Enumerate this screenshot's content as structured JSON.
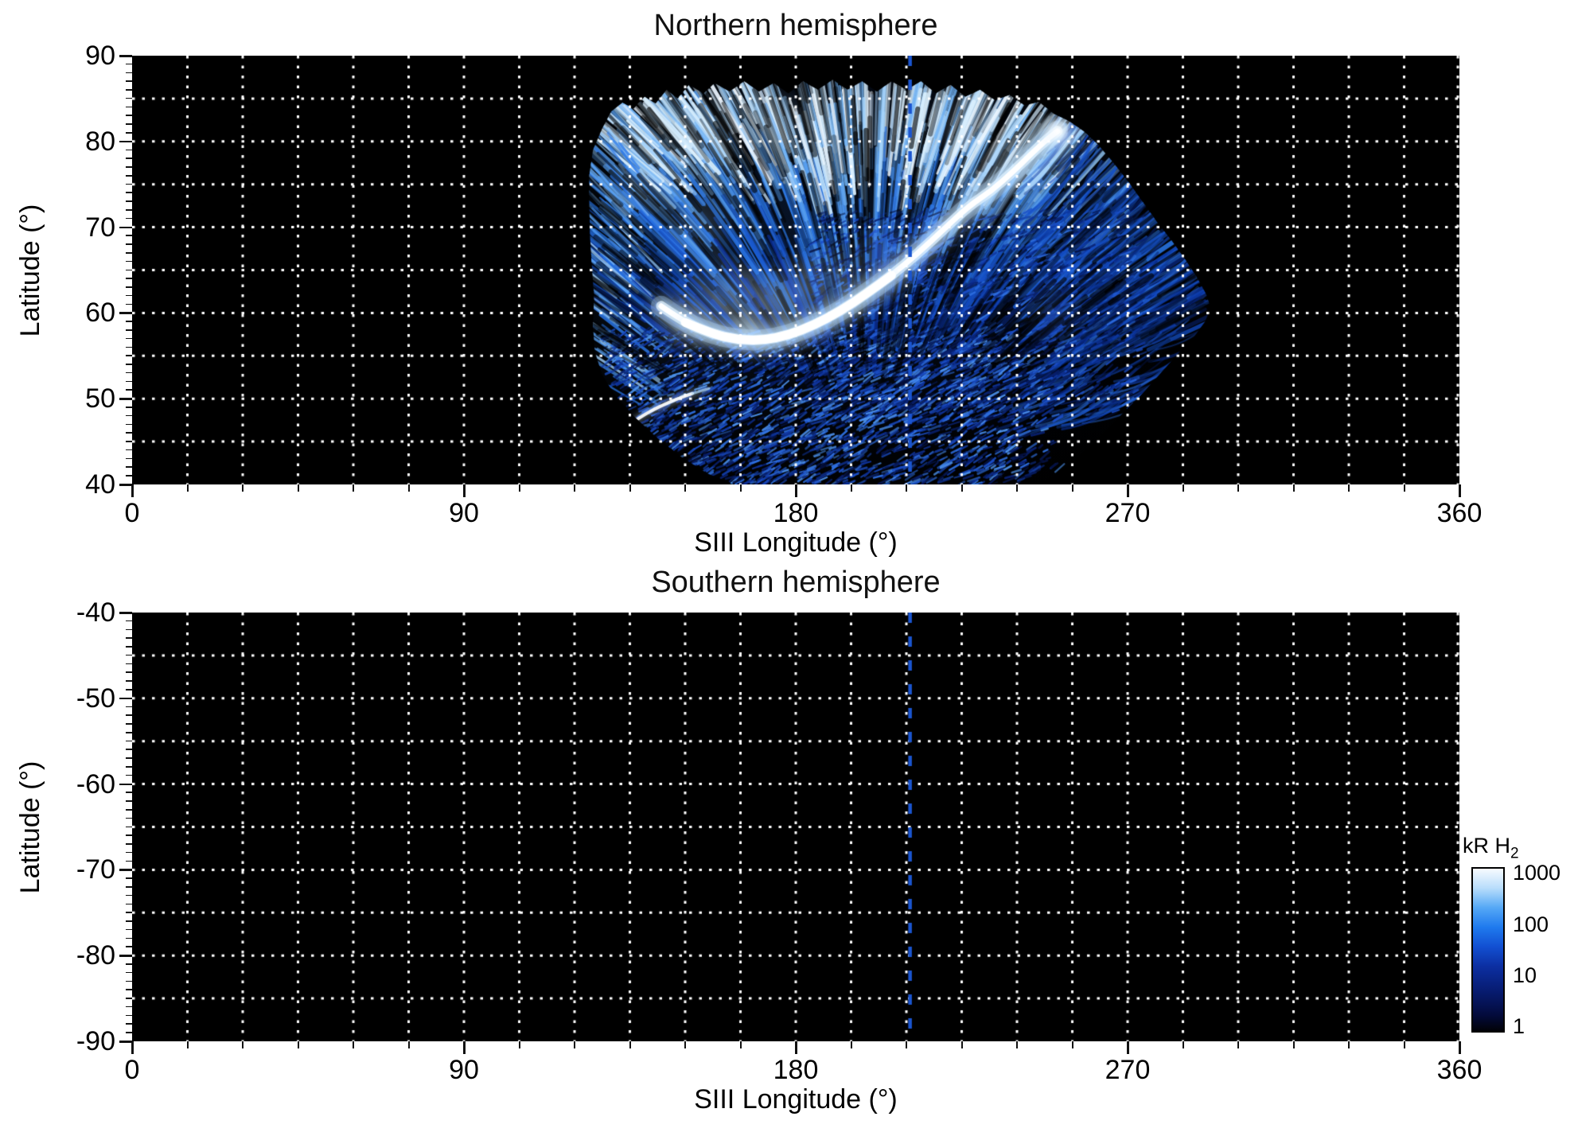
{
  "figure": {
    "background": "#ffffff"
  },
  "chart_data": {
    "type": "heatmap",
    "description": "Auroral H2 emission brightness maps in SIII longitude vs latitude for both hemispheres, log color scale in kR",
    "grid": {
      "color": "#ffffff",
      "style": "dotted",
      "dash": [
        3.5,
        9
      ],
      "line_width": 3,
      "lon_step_deg": 15,
      "lat_step_deg": 5
    },
    "reference_line": {
      "lon": 211,
      "color": "#1a55d0",
      "style": "dashed",
      "dash": [
        13,
        17
      ],
      "width": 4.5
    },
    "panels": [
      {
        "id": "north",
        "title": "Northern hemisphere",
        "xlabel": "SIII Longitude (°)",
        "ylabel": "Latitude (°)",
        "xlim": [
          0,
          360
        ],
        "ylim": [
          40,
          90
        ],
        "xticks": [
          0,
          90,
          180,
          270,
          360
        ],
        "yticks": [
          90,
          80,
          70,
          60,
          50,
          40
        ],
        "x_minor_step": 15,
        "y_minor_step": 1,
        "background": "#000000",
        "has_aurora": true
      },
      {
        "id": "south",
        "title": "Southern hemisphere",
        "xlabel": "SIII Longitude (°)",
        "ylabel": "Latitude (°)",
        "xlim": [
          0,
          360
        ],
        "ylim": [
          -90,
          -40
        ],
        "xticks": [
          0,
          90,
          180,
          270,
          360
        ],
        "yticks": [
          -40,
          -50,
          -60,
          -70,
          -80,
          -90
        ],
        "x_minor_step": 15,
        "y_minor_step": 1,
        "background": "#000000",
        "has_aurora": false
      }
    ],
    "colorbar": {
      "title": "kR H",
      "title_subscript": "2",
      "scale": "log",
      "tick_values": [
        1000,
        100,
        10,
        1
      ],
      "value_range": [
        0.75,
        1300
      ],
      "gradient_bottom_to_top": [
        "#010207",
        "#030b3d",
        "#071c72",
        "#0c2fa2",
        "#1250d2",
        "#1f7aee",
        "#55a8f6",
        "#b8ddfb",
        "#f7fbff"
      ],
      "gradient_stops_pct": [
        0,
        10,
        25,
        40,
        52,
        64,
        76,
        88,
        100
      ]
    },
    "aurora": {
      "seed": 11,
      "lon_range": [
        124,
        293
      ],
      "lat_range": [
        40,
        87
      ],
      "fan_origin": {
        "lon": 200,
        "lat": 26
      },
      "outline": [
        [
          124,
          76
        ],
        [
          125,
          79
        ],
        [
          127.5,
          81.5
        ],
        [
          130,
          83.5
        ],
        [
          133,
          84.5
        ],
        [
          136,
          83.8
        ],
        [
          139,
          85.2
        ],
        [
          142,
          84.4
        ],
        [
          145,
          86
        ],
        [
          148,
          85
        ],
        [
          151,
          86.6
        ],
        [
          155,
          85.6
        ],
        [
          158,
          86.8
        ],
        [
          162,
          85.8
        ],
        [
          166,
          87
        ],
        [
          170,
          85.8
        ],
        [
          174,
          86.8
        ],
        [
          178,
          85.6
        ],
        [
          182,
          87
        ],
        [
          186,
          86
        ],
        [
          190,
          87.2
        ],
        [
          194,
          86
        ],
        [
          198,
          87
        ],
        [
          202,
          85.8
        ],
        [
          206,
          87
        ],
        [
          210,
          86
        ],
        [
          214,
          87
        ],
        [
          218,
          85.6
        ],
        [
          222,
          86.6
        ],
        [
          226,
          85.2
        ],
        [
          230,
          86
        ],
        [
          234,
          84.8
        ],
        [
          238,
          85.4
        ],
        [
          242,
          84.2
        ],
        [
          246,
          84.6
        ],
        [
          250,
          83.2
        ],
        [
          254,
          82.4
        ],
        [
          258,
          81.2
        ],
        [
          262,
          79.6
        ],
        [
          266,
          77.6
        ],
        [
          270,
          75.4
        ],
        [
          274,
          73
        ],
        [
          278,
          70.6
        ],
        [
          282,
          68.4
        ],
        [
          286,
          66
        ],
        [
          289,
          64
        ],
        [
          291.5,
          62
        ],
        [
          292.5,
          60.5
        ],
        [
          291,
          59
        ],
        [
          288,
          57.2
        ],
        [
          284,
          55.4
        ],
        [
          279,
          53
        ],
        [
          274,
          50.6
        ],
        [
          268,
          48
        ],
        [
          262,
          45.4
        ],
        [
          256,
          43
        ],
        [
          250,
          41
        ],
        [
          246,
          40.2
        ],
        [
          244,
          40
        ],
        [
          163,
          40
        ],
        [
          156,
          41.3
        ],
        [
          149,
          43.2
        ],
        [
          142,
          45.6
        ],
        [
          136,
          48
        ],
        [
          131,
          50.4
        ],
        [
          127.5,
          52.8
        ],
        [
          125.5,
          55.5
        ],
        [
          125,
          58.5
        ],
        [
          125.3,
          62
        ],
        [
          124.7,
          65.5
        ],
        [
          124.2,
          69
        ],
        [
          124,
          72.5
        ]
      ],
      "haze": [
        {
          "lon": 180,
          "lat": 72,
          "r": 480,
          "rgba": [
            40,
            110,
            230,
            0.16
          ]
        },
        {
          "lon": 235,
          "lat": 70,
          "r": 380,
          "rgba": [
            30,
            90,
            210,
            0.13
          ]
        },
        {
          "lon": 150,
          "lat": 62,
          "r": 220,
          "rgba": [
            90,
            160,
            245,
            0.12
          ]
        }
      ],
      "bright_clouds": [
        {
          "lon": 150,
          "lat": 58.5,
          "r": 42,
          "a": 0.28
        },
        {
          "lon": 159,
          "lat": 62,
          "r": 58,
          "a": 0.34
        },
        {
          "lon": 170,
          "lat": 60.5,
          "r": 62,
          "a": 0.4
        },
        {
          "lon": 181,
          "lat": 62.5,
          "r": 58,
          "a": 0.34
        },
        {
          "lon": 192,
          "lat": 64.5,
          "r": 50,
          "a": 0.26
        },
        {
          "lon": 168,
          "lat": 58,
          "r": 30,
          "a": 0.45
        },
        {
          "lon": 203,
          "lat": 67.5,
          "r": 42,
          "a": 0.2
        },
        {
          "lon": 240,
          "lat": 77.5,
          "r": 46,
          "a": 0.42
        },
        {
          "lon": 230,
          "lat": 73.5,
          "r": 38,
          "a": 0.26
        },
        {
          "lon": 248,
          "lat": 80,
          "r": 30,
          "a": 0.5
        },
        {
          "lon": 152,
          "lat": 70,
          "r": 55,
          "a": 0.18
        },
        {
          "lon": 140,
          "lat": 75,
          "r": 50,
          "a": 0.22
        },
        {
          "lon": 155,
          "lat": 80,
          "r": 55,
          "a": 0.26
        },
        {
          "lon": 175,
          "lat": 82,
          "r": 50,
          "a": 0.22
        },
        {
          "lon": 225,
          "lat": 82,
          "r": 50,
          "a": 0.24
        },
        {
          "lon": 250,
          "lat": 60,
          "r": 45,
          "a": 0.1
        }
      ],
      "main_oval": [
        [
          143.5,
          60.8
        ],
        [
          150,
          58.9
        ],
        [
          157,
          57.6
        ],
        [
          164,
          56.9
        ],
        [
          171,
          56.8
        ],
        [
          178,
          57.4
        ],
        [
          185,
          58.6
        ],
        [
          192,
          60.2
        ],
        [
          199,
          62.2
        ],
        [
          206,
          64.4
        ],
        [
          213,
          66.9
        ],
        [
          220,
          69.7
        ],
        [
          227,
          72.5
        ],
        [
          233,
          74.2
        ],
        [
          239,
          76.5
        ],
        [
          244,
          78.6
        ],
        [
          248,
          80.2
        ],
        [
          251,
          81.2
        ]
      ],
      "main_oval_bright_span": [
        1,
        9
      ],
      "secondary_arc": [
        [
          133.5,
          46.6
        ],
        [
          138,
          47.9
        ],
        [
          143,
          49.1
        ],
        [
          148,
          50
        ],
        [
          152,
          50.6
        ]
      ],
      "secondary_arc_ext": [
        [
          152,
          50.6
        ],
        [
          156.5,
          51.2
        ]
      ],
      "streak_passes": [
        {
          "name": "upper-fan",
          "n": 750,
          "lon": [
            124,
            292
          ],
          "lat": [
            58,
            88
          ],
          "len": [
            50,
            160
          ],
          "width": [
            2,
            6
          ],
          "alpha": [
            0.3,
            0.8
          ],
          "angle_mode": "radial",
          "flatten": 0.55,
          "bias_lat": true,
          "palette": [
            "#0a2f9a",
            "#1553cc",
            "#2a77e8",
            "#57a0f2",
            "#93c9f8",
            "#d8eefd"
          ]
        },
        {
          "name": "top-bright",
          "n": 230,
          "lon": [
            130,
            270
          ],
          "lat": [
            77,
            87
          ],
          "len": [
            60,
            150
          ],
          "width": [
            2.5,
            5.5
          ],
          "alpha": [
            0.45,
            0.95
          ],
          "angle_mode": "radial",
          "flatten": 0.45,
          "bias_lat": false,
          "palette": [
            "#6fb2f5",
            "#a5d2fa",
            "#d8eefd",
            "#eef7ff"
          ]
        },
        {
          "name": "left-rim",
          "n": 90,
          "lon": [
            124,
            138
          ],
          "lat": [
            50,
            80
          ],
          "len": [
            40,
            95
          ],
          "width": [
            2,
            4
          ],
          "alpha": [
            0.4,
            0.85
          ],
          "angle_mode": "radial",
          "flatten": 0.7,
          "bias_lat": false,
          "palette": [
            "#2a77e8",
            "#57a0f2",
            "#9cccf8"
          ]
        },
        {
          "name": "right-lobe",
          "n": 290,
          "lon": [
            246,
            293
          ],
          "lat": [
            48,
            82
          ],
          "len": [
            60,
            150
          ],
          "width": [
            2,
            4
          ],
          "alpha": [
            0.3,
            0.65
          ],
          "angle_mode": "radial",
          "flatten": 0.55,
          "curve": 0.15,
          "bias_lat": false,
          "fade_lon": [
            278,
            297
          ],
          "palette": [
            "#051f70",
            "#0a35a0",
            "#1550c8",
            "#2a6fe0"
          ]
        },
        {
          "name": "mid-speckle",
          "n": 1600,
          "lon": [
            185,
            275
          ],
          "lat": [
            48,
            72
          ],
          "len": [
            5,
            18
          ],
          "width": [
            2,
            3
          ],
          "alpha": [
            0.45,
            0.9
          ],
          "angle_mode": "fixed",
          "angle": -0.5,
          "jitter": 0.25,
          "fade_lon": [
            252,
            292
          ],
          "bias_lat": false,
          "palette": [
            "#04103f",
            "#081f6e",
            "#0e339b",
            "#1a4ec8",
            "#2e6fe0"
          ]
        },
        {
          "name": "lower-speckle",
          "n": 2700,
          "lon": [
            128,
            252
          ],
          "lat": [
            40,
            58
          ],
          "len": [
            5,
            16
          ],
          "width": [
            2,
            3
          ],
          "alpha": [
            0.5,
            0.95
          ],
          "angle_mode": "fixed",
          "angle": -0.5,
          "jitter": 0.25,
          "fade_lon": [
            228,
            264
          ],
          "bias_lat": false,
          "palette": [
            "#04103f",
            "#081f6e",
            "#0e339b",
            "#1a4ec8",
            "#2e6fe0",
            "#4c92ee"
          ]
        },
        {
          "name": "dark-notches",
          "n": 330,
          "lon": [
            124,
            290
          ],
          "lat": [
            55,
            87
          ],
          "len": [
            40,
            110
          ],
          "width": [
            3,
            7
          ],
          "alpha": [
            0.3,
            0.65
          ],
          "angle_mode": "radial",
          "flatten": 0.55,
          "bias_lat": false,
          "palette": [
            "#000000"
          ]
        }
      ]
    }
  }
}
